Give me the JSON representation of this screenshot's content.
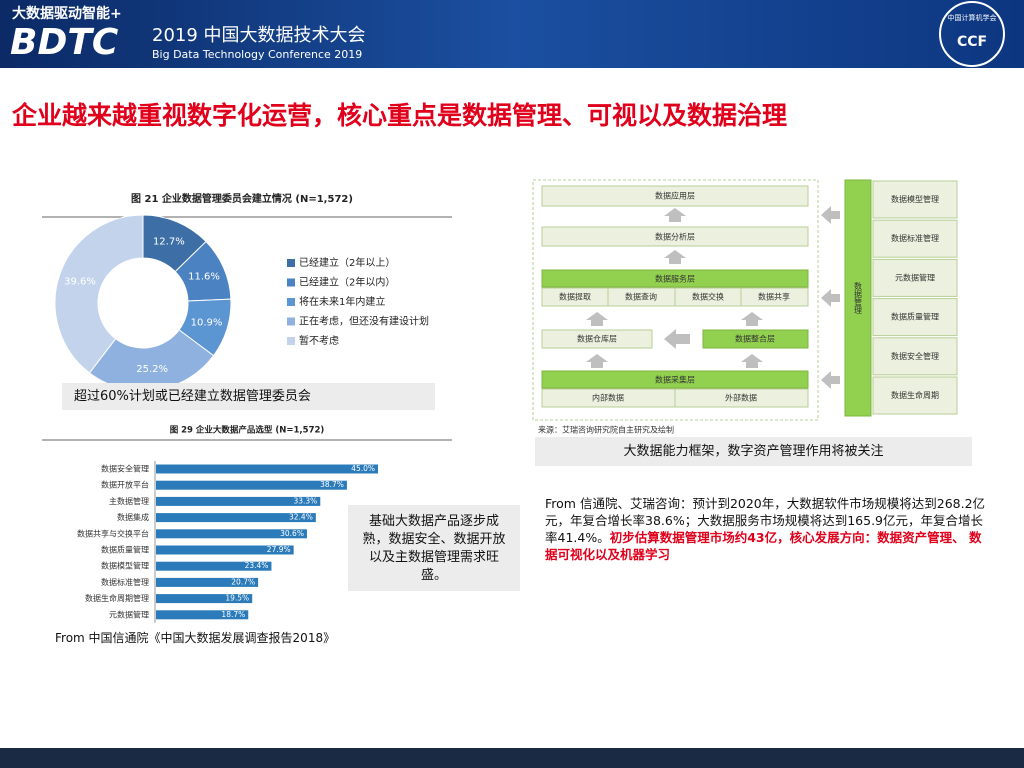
{
  "header": {
    "slogan": "大数据驱动智能+",
    "brand": "BDTC",
    "conference": "2019 中国大数据技术大会",
    "conference_en": "Big Data Technology Conference 2019",
    "logo_text": "中国计算机学会",
    "logo_abbr": "CCF"
  },
  "title": "企业越来越重视数字化运营，核心重点是数据管理、可视以及数据治理",
  "chart_data": [
    {
      "type": "pie",
      "title": "图 21  企业数据管理委员会建立情况 (N=1,572)",
      "categories": [
        "已经建立（2年以上）",
        "已经建立（2年以内）",
        "将在未来1年内建立",
        "正在考虑，但还没有建设计划",
        "暂不考虑"
      ],
      "values": [
        12.7,
        11.6,
        10.9,
        25.2,
        39.6
      ],
      "value_labels": [
        "12.7%",
        "11.6%",
        "10.9%",
        "25.2%",
        "39.6%"
      ],
      "colors": [
        "#3d6fa6",
        "#4a82c2",
        "#5b96d3",
        "#8fb1df",
        "#c3d3ec"
      ],
      "legend": "right"
    },
    {
      "type": "bar",
      "orientation": "horizontal",
      "title": "图 29  企业大数据产品选型 (N=1,572)",
      "categories": [
        "数据安全管理",
        "数据开放平台",
        "主数据管理",
        "数据集成",
        "数据共享与交换平台",
        "数据质量管理",
        "数据模型管理",
        "数据标准管理",
        "数据生命周期管理",
        "元数据管理"
      ],
      "values": [
        45.0,
        38.7,
        33.3,
        32.4,
        30.6,
        27.9,
        23.4,
        20.7,
        19.5,
        18.7
      ],
      "value_labels": [
        "45.0%",
        "38.7%",
        "33.3%",
        "32.4%",
        "30.6%",
        "27.9%",
        "23.4%",
        "20.7%",
        "19.5%",
        "18.7%"
      ],
      "color": "#2b7bba"
    }
  ],
  "pie_caption": "超过60%计划或已经建立数据管理委员会",
  "bar_note": "基础大数据产品逐步成熟，数据安全、数据开放以及主数据管理需求旺盛。",
  "bar_source": "From 中国信通院《中国大数据发展调查报告2018》",
  "framework": {
    "application": "数据应用层",
    "analysis": "数据分析层",
    "service": "数据服务层",
    "service_items": [
      "数据提取",
      "数据查询",
      "数据交换",
      "数据共享"
    ],
    "warehouse": "数据仓库层",
    "integration": "数据整合层",
    "collection": "数据采集层",
    "collection_items": [
      "内部数据",
      "外部数据"
    ],
    "management": "数据管理",
    "management_items": [
      "数据模型管理",
      "数据标准管理",
      "元数据管理",
      "数据质量管理",
      "数据安全管理",
      "数据生命周期"
    ],
    "source": "来源：艾瑞咨询研究院自主研究及绘制"
  },
  "framework_caption": "大数据能力框架，数字资产管理作用将被关注",
  "paragraph": {
    "text": "From 信通院、艾瑞咨询：预计到2020年，大数据软件市场规模将达到268.2亿元，年复合增长率38.6%；大数据服务市场规模将达到165.9亿元，年复合增长率41.4%。",
    "highlight": "初步估算数据管理市场约43亿，核心发展方向：数据资产管理、 数据可视化以及机器学习"
  }
}
